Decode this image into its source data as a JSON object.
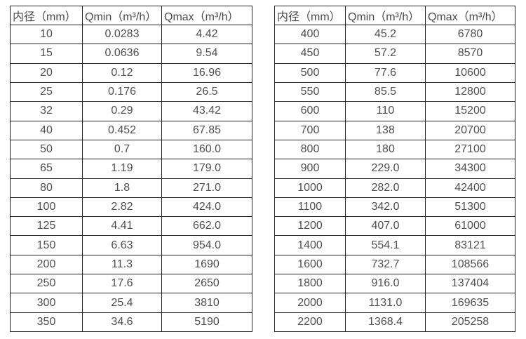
{
  "page": {
    "background_color": "#ffffff",
    "border_color": "#262626",
    "text_color": "#4a4a4a"
  },
  "tables": [
    {
      "name": "small-diameter-spec-table",
      "headers": [
        "内径（mm）",
        "Qmin（m³/h）",
        "Qmax（m³/h）"
      ],
      "rows": [
        [
          "10",
          "0.0283",
          "4.42"
        ],
        [
          "15",
          "0.0636",
          "9.54"
        ],
        [
          "20",
          "0.12",
          "16.96"
        ],
        [
          "25",
          "0.176",
          "26.5"
        ],
        [
          "32",
          "0.29",
          "43.42"
        ],
        [
          "40",
          "0.452",
          "67.85"
        ],
        [
          "50",
          "0.7",
          "160.0"
        ],
        [
          "65",
          "1.19",
          "179.0"
        ],
        [
          "80",
          "1.8",
          "271.0"
        ],
        [
          "100",
          "2.82",
          "424.0"
        ],
        [
          "125",
          "4.41",
          "662.0"
        ],
        [
          "150",
          "6.63",
          "954.0"
        ],
        [
          "200",
          "11.3",
          "1690"
        ],
        [
          "250",
          "17.6",
          "2650"
        ],
        [
          "300",
          "25.4",
          "3810"
        ],
        [
          "350",
          "34.6",
          "5190"
        ]
      ]
    },
    {
      "name": "large-diameter-spec-table",
      "headers": [
        "内径（mm）",
        "Qmin（m³/h）",
        "Qmax（m³/h）"
      ],
      "rows": [
        [
          "400",
          "45.2",
          "6780"
        ],
        [
          "450",
          "57.2",
          "8570"
        ],
        [
          "500",
          "77.6",
          "10600"
        ],
        [
          "550",
          "85.5",
          "12800"
        ],
        [
          "600",
          "110",
          "15200"
        ],
        [
          "700",
          "138",
          "20700"
        ],
        [
          "800",
          "180",
          "27100"
        ],
        [
          "900",
          "229.0",
          "34300"
        ],
        [
          "1000",
          "282.0",
          "42400"
        ],
        [
          "1100",
          "342.0",
          "51300"
        ],
        [
          "1200",
          "407.0",
          "61000"
        ],
        [
          "1400",
          "554.1",
          "83121"
        ],
        [
          "1600",
          "732.7",
          "108566"
        ],
        [
          "1800",
          "916.0",
          "137404"
        ],
        [
          "2000",
          "1131.0",
          "169635"
        ],
        [
          "2200",
          "1368.4",
          "205258"
        ]
      ]
    }
  ]
}
